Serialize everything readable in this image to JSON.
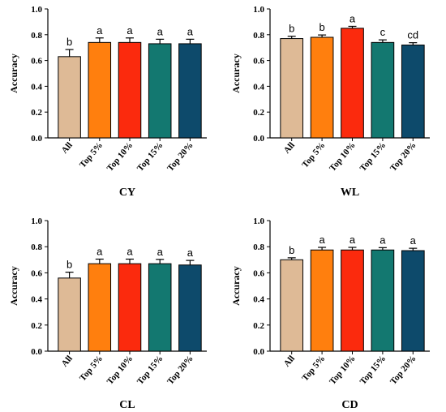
{
  "chart_data": [
    {
      "type": "bar",
      "title": "CY",
      "ylabel": "Accuracy",
      "ylim": [
        0,
        1.0
      ],
      "yticks": [
        0.0,
        0.2,
        0.4,
        0.6,
        0.8,
        1.0
      ],
      "categories": [
        "All",
        "Top 5%",
        "Top 10%",
        "Top 15%",
        "Top 20%"
      ],
      "values": [
        0.63,
        0.74,
        0.74,
        0.73,
        0.73
      ],
      "errors": [
        0.055,
        0.035,
        0.035,
        0.035,
        0.035
      ],
      "letters": [
        "b",
        "a",
        "a",
        "a",
        "a"
      ]
    },
    {
      "type": "bar",
      "title": "WL",
      "ylabel": "Accuracy",
      "ylim": [
        0,
        1.0
      ],
      "yticks": [
        0.0,
        0.2,
        0.4,
        0.6,
        0.8,
        1.0
      ],
      "categories": [
        "All",
        "Top 5%",
        "Top 10%",
        "Top 15%",
        "Top 20%"
      ],
      "values": [
        0.77,
        0.78,
        0.85,
        0.74,
        0.72
      ],
      "errors": [
        0.018,
        0.018,
        0.015,
        0.02,
        0.018
      ],
      "letters": [
        "b",
        "b",
        "a",
        "c",
        "cd"
      ]
    },
    {
      "type": "bar",
      "title": "CL",
      "ylabel": "Accuracy",
      "ylim": [
        0,
        1.0
      ],
      "yticks": [
        0.0,
        0.2,
        0.4,
        0.6,
        0.8,
        1.0
      ],
      "categories": [
        "All",
        "Top 5%",
        "Top 10%",
        "Top 15%",
        "Top 20%"
      ],
      "values": [
        0.56,
        0.67,
        0.67,
        0.67,
        0.66
      ],
      "errors": [
        0.045,
        0.035,
        0.035,
        0.033,
        0.035
      ],
      "letters": [
        "b",
        "a",
        "a",
        "a",
        "a"
      ]
    },
    {
      "type": "bar",
      "title": "CD",
      "ylabel": "Accuracy",
      "ylim": [
        0,
        1.0
      ],
      "yticks": [
        0.0,
        0.2,
        0.4,
        0.6,
        0.8,
        1.0
      ],
      "categories": [
        "All",
        "Top 5%",
        "Top 10%",
        "Top 15%",
        "Top 20%"
      ],
      "values": [
        0.7,
        0.775,
        0.775,
        0.775,
        0.77
      ],
      "errors": [
        0.015,
        0.02,
        0.02,
        0.018,
        0.018
      ],
      "letters": [
        "b",
        "a",
        "a",
        "a",
        "a"
      ]
    }
  ],
  "colors": [
    "#deba96",
    "#ff7f0e",
    "#fb2a0d",
    "#137870",
    "#0d4a6b"
  ]
}
